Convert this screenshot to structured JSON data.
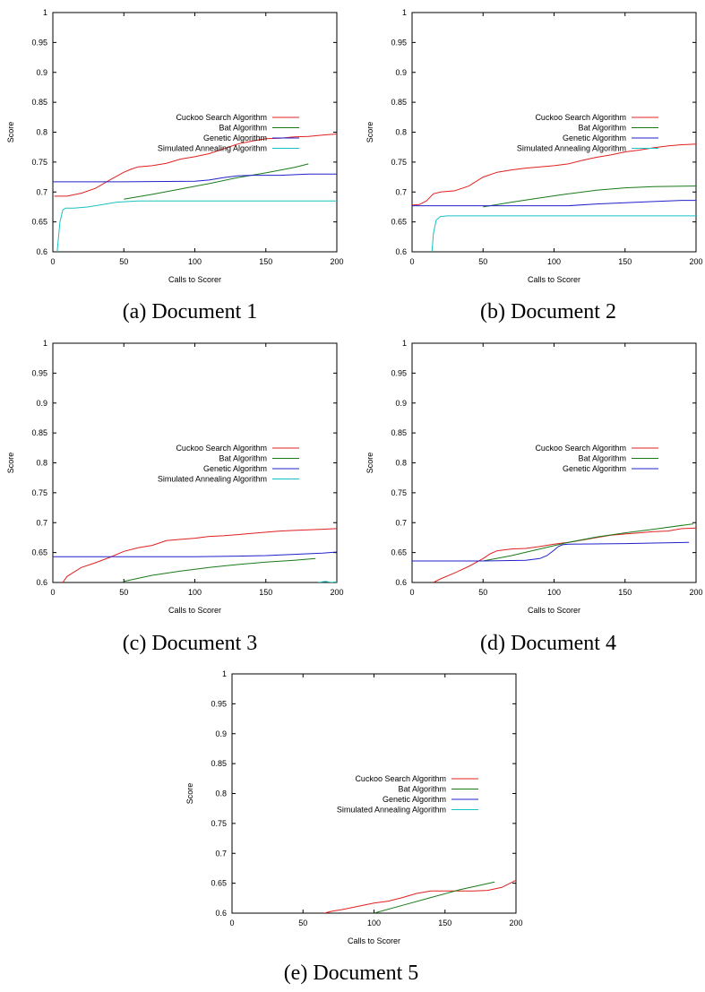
{
  "captions": [
    "(a) Document 1",
    "(b) Document 2",
    "(c) Document 3",
    "(d) Document 4",
    "(e) Document 5"
  ],
  "chart_data": [
    {
      "type": "line",
      "xlabel": "Calls to Scorer",
      "ylabel": "Score",
      "xlim": [
        0,
        200
      ],
      "ylim": [
        0.6,
        1
      ],
      "xticks": [
        "0",
        "50",
        "100",
        "150",
        "200"
      ],
      "yticks": [
        "0.6",
        "0.65",
        "0.7",
        "0.75",
        "0.8",
        "0.85",
        "0.9",
        "0.95",
        "1"
      ],
      "legend_position": "right",
      "series": [
        {
          "name": "Cuckoo Search Algorithm",
          "color": "#e02020",
          "x": [
            1,
            10,
            20,
            30,
            40,
            50,
            55,
            60,
            70,
            80,
            90,
            100,
            110,
            120,
            130,
            140,
            150,
            160,
            170,
            180,
            190,
            200
          ],
          "y": [
            0.693,
            0.693,
            0.698,
            0.706,
            0.72,
            0.733,
            0.738,
            0.742,
            0.744,
            0.748,
            0.755,
            0.759,
            0.764,
            0.772,
            0.78,
            0.785,
            0.789,
            0.79,
            0.792,
            0.793,
            0.795,
            0.797
          ]
        },
        {
          "name": "Bat Algorithm",
          "color": "#1a7a1a",
          "x": [
            50,
            70,
            90,
            110,
            130,
            150,
            170,
            180
          ],
          "y": [
            0.688,
            0.696,
            0.705,
            0.714,
            0.724,
            0.732,
            0.741,
            0.747
          ]
        },
        {
          "name": "Genetic Algorithm",
          "color": "#2020cc",
          "x": [
            0,
            50,
            100,
            110,
            120,
            130,
            140,
            160,
            180,
            200
          ],
          "y": [
            0.717,
            0.717,
            0.718,
            0.72,
            0.724,
            0.727,
            0.728,
            0.728,
            0.73,
            0.73
          ]
        },
        {
          "name": "Simulated Annealing Algorithm",
          "color": "#19c2c2",
          "x": [
            3,
            5,
            7,
            9,
            15,
            25,
            35,
            45,
            60,
            80,
            100,
            150,
            200
          ],
          "y": [
            0.6,
            0.65,
            0.67,
            0.673,
            0.673,
            0.675,
            0.679,
            0.683,
            0.685,
            0.685,
            0.685,
            0.685,
            0.685
          ]
        }
      ]
    },
    {
      "type": "line",
      "xlabel": "Calls to Scorer",
      "ylabel": "Score",
      "xlim": [
        0,
        200
      ],
      "ylim": [
        0.6,
        1
      ],
      "xticks": [
        "0",
        "50",
        "100",
        "150",
        "200"
      ],
      "yticks": [
        "0.6",
        "0.65",
        "0.7",
        "0.75",
        "0.8",
        "0.85",
        "0.9",
        "0.95",
        "1"
      ],
      "legend_position": "right",
      "series": [
        {
          "name": "Cuckoo Search Algorithm",
          "color": "#e02020",
          "x": [
            0,
            5,
            10,
            15,
            20,
            30,
            40,
            50,
            60,
            70,
            80,
            90,
            100,
            110,
            120,
            130,
            140,
            150,
            160,
            170,
            180,
            190,
            200
          ],
          "y": [
            0.678,
            0.679,
            0.685,
            0.697,
            0.7,
            0.702,
            0.71,
            0.725,
            0.733,
            0.737,
            0.74,
            0.742,
            0.744,
            0.747,
            0.753,
            0.758,
            0.762,
            0.767,
            0.77,
            0.774,
            0.777,
            0.779,
            0.78
          ]
        },
        {
          "name": "Bat Algorithm",
          "color": "#1a7a1a",
          "x": [
            50,
            70,
            90,
            110,
            130,
            150,
            170,
            200
          ],
          "y": [
            0.675,
            0.683,
            0.69,
            0.697,
            0.703,
            0.707,
            0.709,
            0.71
          ]
        },
        {
          "name": "Genetic Algorithm",
          "color": "#2020cc",
          "x": [
            0,
            50,
            100,
            110,
            130,
            150,
            170,
            190,
            200
          ],
          "y": [
            0.677,
            0.677,
            0.677,
            0.677,
            0.68,
            0.682,
            0.684,
            0.686,
            0.686
          ]
        },
        {
          "name": "Simulated Annealing Algorithm",
          "color": "#19c2c2",
          "x": [
            14,
            15,
            17,
            20,
            25,
            50,
            100,
            150,
            200
          ],
          "y": [
            0.6,
            0.63,
            0.653,
            0.659,
            0.66,
            0.66,
            0.66,
            0.66,
            0.66
          ]
        }
      ]
    },
    {
      "type": "line",
      "xlabel": "Calls to Scorer",
      "ylabel": "Score",
      "xlim": [
        0,
        200
      ],
      "ylim": [
        0.6,
        1
      ],
      "xticks": [
        "0",
        "50",
        "100",
        "150",
        "200"
      ],
      "yticks": [
        "0.6",
        "0.65",
        "0.7",
        "0.75",
        "0.8",
        "0.85",
        "0.9",
        "0.95",
        "1"
      ],
      "legend_position": "right",
      "series": [
        {
          "name": "Cuckoo Search Algorithm",
          "color": "#e02020",
          "x": [
            7,
            10,
            20,
            30,
            40,
            50,
            60,
            70,
            80,
            90,
            100,
            110,
            120,
            130,
            140,
            150,
            160,
            170,
            180,
            190,
            200
          ],
          "y": [
            0.6,
            0.61,
            0.625,
            0.633,
            0.642,
            0.652,
            0.658,
            0.662,
            0.67,
            0.672,
            0.674,
            0.677,
            0.678,
            0.68,
            0.682,
            0.684,
            0.686,
            0.687,
            0.688,
            0.689,
            0.69
          ]
        },
        {
          "name": "Bat Algorithm",
          "color": "#1a7a1a",
          "x": [
            50,
            70,
            90,
            110,
            130,
            150,
            170,
            185
          ],
          "y": [
            0.602,
            0.612,
            0.619,
            0.625,
            0.63,
            0.634,
            0.637,
            0.64
          ]
        },
        {
          "name": "Genetic Algorithm",
          "color": "#2020cc",
          "x": [
            0,
            50,
            100,
            130,
            150,
            170,
            190,
            200
          ],
          "y": [
            0.643,
            0.643,
            0.643,
            0.644,
            0.645,
            0.647,
            0.649,
            0.651
          ]
        },
        {
          "name": "Simulated Annealing Algorithm",
          "color": "#19c2c2",
          "x": [
            187,
            192,
            196,
            200
          ],
          "y": [
            0.6,
            0.602,
            0.6,
            0.601
          ]
        }
      ]
    },
    {
      "type": "line",
      "xlabel": "Calls to Scorer",
      "ylabel": "Score",
      "xlim": [
        0,
        200
      ],
      "ylim": [
        0.6,
        1
      ],
      "xticks": [
        "0",
        "50",
        "100",
        "150",
        "200"
      ],
      "yticks": [
        "0.6",
        "0.65",
        "0.7",
        "0.75",
        "0.8",
        "0.85",
        "0.9",
        "0.95",
        "1"
      ],
      "legend_position": "right",
      "series": [
        {
          "name": "Cuckoo Search Algorithm",
          "color": "#e02020",
          "x": [
            15,
            20,
            30,
            40,
            50,
            55,
            60,
            70,
            80,
            90,
            100,
            110,
            120,
            130,
            140,
            150,
            160,
            170,
            180,
            190,
            200
          ],
          "y": [
            0.6,
            0.606,
            0.616,
            0.627,
            0.64,
            0.648,
            0.653,
            0.656,
            0.657,
            0.66,
            0.664,
            0.667,
            0.671,
            0.675,
            0.679,
            0.681,
            0.683,
            0.685,
            0.686,
            0.69,
            0.691
          ]
        },
        {
          "name": "Bat Algorithm",
          "color": "#1a7a1a",
          "x": [
            50,
            70,
            90,
            110,
            130,
            150,
            170,
            198
          ],
          "y": [
            0.636,
            0.645,
            0.656,
            0.667,
            0.676,
            0.683,
            0.689,
            0.698
          ]
        },
        {
          "name": "Genetic Algorithm",
          "color": "#2020cc",
          "x": [
            0,
            50,
            80,
            90,
            95,
            100,
            103,
            106,
            110,
            150,
            195
          ],
          "y": [
            0.636,
            0.636,
            0.637,
            0.64,
            0.645,
            0.654,
            0.66,
            0.663,
            0.664,
            0.665,
            0.667
          ]
        }
      ]
    },
    {
      "type": "line",
      "xlabel": "Calls to Scorer",
      "ylabel": "Score",
      "xlim": [
        0,
        200
      ],
      "ylim": [
        0.6,
        1
      ],
      "xticks": [
        "0",
        "50",
        "100",
        "150",
        "200"
      ],
      "yticks": [
        "0.6",
        "0.65",
        "0.7",
        "0.75",
        "0.8",
        "0.85",
        "0.9",
        "0.95",
        "1"
      ],
      "legend_position": "right",
      "series": [
        {
          "name": "Cuckoo Search Algorithm",
          "color": "#e02020",
          "x": [
            65,
            70,
            80,
            90,
            100,
            110,
            120,
            130,
            140,
            150,
            160,
            170,
            180,
            190,
            200
          ],
          "y": [
            0.6,
            0.603,
            0.607,
            0.612,
            0.617,
            0.62,
            0.626,
            0.633,
            0.637,
            0.637,
            0.637,
            0.637,
            0.638,
            0.643,
            0.655
          ]
        },
        {
          "name": "Bat Algorithm",
          "color": "#1a7a1a",
          "x": [
            100,
            120,
            140,
            160,
            185
          ],
          "y": [
            0.6,
            0.613,
            0.626,
            0.639,
            0.652
          ]
        },
        {
          "name": "Genetic Algorithm",
          "color": "#2020cc",
          "x": [],
          "y": []
        },
        {
          "name": "Simulated Annealing Algorithm",
          "color": "#19c2c2",
          "x": [],
          "y": []
        }
      ]
    }
  ]
}
